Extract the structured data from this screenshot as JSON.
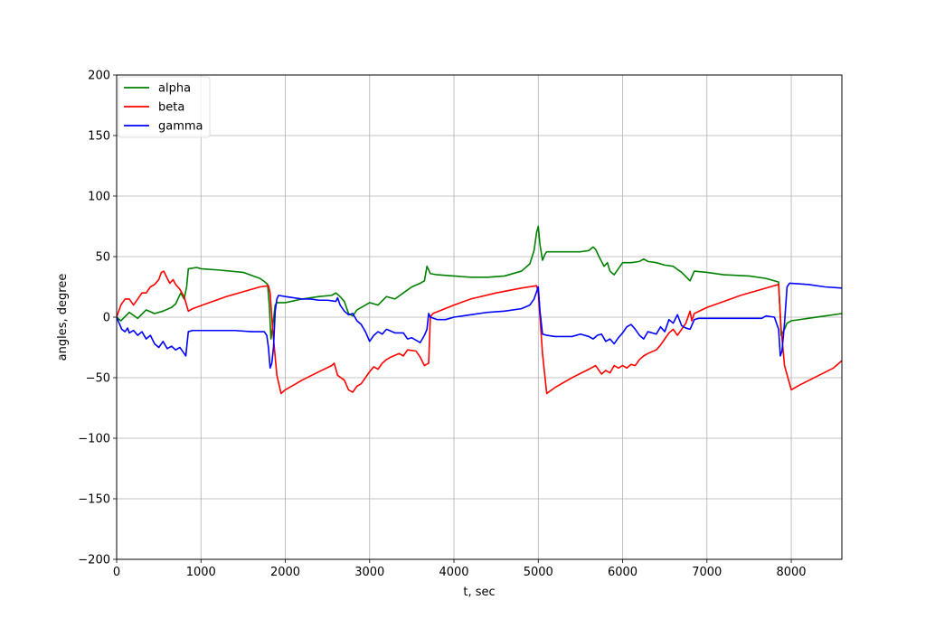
{
  "chart_data": {
    "type": "line",
    "xlabel": "t, sec",
    "ylabel": "angles, degree",
    "xlim": [
      0,
      8600
    ],
    "ylim": [
      -200,
      200
    ],
    "xticks": [
      0,
      1000,
      2000,
      3000,
      4000,
      5000,
      6000,
      7000,
      8000
    ],
    "yticks": [
      -200,
      -150,
      -100,
      -50,
      0,
      50,
      100,
      150,
      200
    ],
    "xtick_labels": [
      "0",
      "1000",
      "2000",
      "3000",
      "4000",
      "5000",
      "6000",
      "7000",
      "8000"
    ],
    "ytick_labels": [
      "−200",
      "−150",
      "−100",
      "−50",
      "0",
      "50",
      "100",
      "150",
      "200"
    ],
    "grid": true,
    "legend_position": "top-left",
    "series": [
      {
        "name": "alpha",
        "color": "#008000",
        "points": [
          [
            0,
            0
          ],
          [
            50,
            -3
          ],
          [
            150,
            4
          ],
          [
            250,
            -1
          ],
          [
            350,
            6
          ],
          [
            450,
            3
          ],
          [
            550,
            5
          ],
          [
            650,
            8
          ],
          [
            700,
            11
          ],
          [
            760,
            20
          ],
          [
            800,
            15
          ],
          [
            830,
            25
          ],
          [
            850,
            40
          ],
          [
            950,
            41
          ],
          [
            1000,
            40
          ],
          [
            1200,
            39
          ],
          [
            1500,
            37
          ],
          [
            1700,
            32
          ],
          [
            1760,
            29
          ],
          [
            1790,
            27
          ],
          [
            1810,
            10
          ],
          [
            1830,
            -18
          ],
          [
            1850,
            -8
          ],
          [
            1880,
            10
          ],
          [
            1900,
            12
          ],
          [
            2000,
            12
          ],
          [
            2200,
            15
          ],
          [
            2400,
            17
          ],
          [
            2550,
            18
          ],
          [
            2600,
            20
          ],
          [
            2650,
            17
          ],
          [
            2700,
            13
          ],
          [
            2750,
            3
          ],
          [
            2800,
            1
          ],
          [
            2850,
            6
          ],
          [
            2900,
            8
          ],
          [
            3000,
            12
          ],
          [
            3100,
            10
          ],
          [
            3200,
            17
          ],
          [
            3300,
            15
          ],
          [
            3400,
            20
          ],
          [
            3500,
            25
          ],
          [
            3600,
            28
          ],
          [
            3650,
            30
          ],
          [
            3680,
            42
          ],
          [
            3720,
            36
          ],
          [
            3800,
            35
          ],
          [
            4000,
            34
          ],
          [
            4200,
            33
          ],
          [
            4400,
            33
          ],
          [
            4600,
            34
          ],
          [
            4800,
            38
          ],
          [
            4900,
            44
          ],
          [
            4950,
            55
          ],
          [
            4980,
            70
          ],
          [
            5000,
            75
          ],
          [
            5020,
            60
          ],
          [
            5050,
            47
          ],
          [
            5080,
            52
          ],
          [
            5100,
            54
          ],
          [
            5300,
            54
          ],
          [
            5500,
            54
          ],
          [
            5600,
            55
          ],
          [
            5650,
            58
          ],
          [
            5680,
            56
          ],
          [
            5720,
            50
          ],
          [
            5780,
            42
          ],
          [
            5820,
            45
          ],
          [
            5850,
            38
          ],
          [
            5900,
            35
          ],
          [
            5950,
            40
          ],
          [
            6000,
            45
          ],
          [
            6100,
            45
          ],
          [
            6200,
            46
          ],
          [
            6250,
            48
          ],
          [
            6300,
            46
          ],
          [
            6400,
            45
          ],
          [
            6500,
            43
          ],
          [
            6600,
            42
          ],
          [
            6700,
            37
          ],
          [
            6800,
            30
          ],
          [
            6850,
            38
          ],
          [
            7000,
            37
          ],
          [
            7200,
            35
          ],
          [
            7500,
            34
          ],
          [
            7700,
            32
          ],
          [
            7850,
            29
          ],
          [
            7880,
            -15
          ],
          [
            7920,
            -10
          ],
          [
            7950,
            -5
          ],
          [
            8000,
            -3
          ],
          [
            8200,
            -1
          ],
          [
            8400,
            1
          ],
          [
            8600,
            3
          ]
        ]
      },
      {
        "name": "beta",
        "color": "#ff0000",
        "points": [
          [
            0,
            0
          ],
          [
            50,
            10
          ],
          [
            100,
            15
          ],
          [
            150,
            15
          ],
          [
            200,
            10
          ],
          [
            250,
            15
          ],
          [
            300,
            20
          ],
          [
            350,
            20
          ],
          [
            400,
            25
          ],
          [
            450,
            27
          ],
          [
            500,
            31
          ],
          [
            530,
            37
          ],
          [
            560,
            38
          ],
          [
            600,
            32
          ],
          [
            630,
            28
          ],
          [
            670,
            31
          ],
          [
            700,
            27
          ],
          [
            750,
            23
          ],
          [
            800,
            17
          ],
          [
            850,
            5
          ],
          [
            900,
            7
          ],
          [
            1100,
            12
          ],
          [
            1300,
            17
          ],
          [
            1500,
            21
          ],
          [
            1700,
            25
          ],
          [
            1800,
            26
          ],
          [
            1820,
            20
          ],
          [
            1850,
            -10
          ],
          [
            1900,
            -48
          ],
          [
            1950,
            -63
          ],
          [
            2000,
            -60
          ],
          [
            2200,
            -52
          ],
          [
            2400,
            -45
          ],
          [
            2550,
            -40
          ],
          [
            2580,
            -38
          ],
          [
            2620,
            -48
          ],
          [
            2700,
            -52
          ],
          [
            2750,
            -60
          ],
          [
            2800,
            -62
          ],
          [
            2850,
            -57
          ],
          [
            2900,
            -55
          ],
          [
            2950,
            -50
          ],
          [
            3000,
            -45
          ],
          [
            3050,
            -41
          ],
          [
            3100,
            -43
          ],
          [
            3150,
            -38
          ],
          [
            3200,
            -35
          ],
          [
            3250,
            -33
          ],
          [
            3350,
            -30
          ],
          [
            3400,
            -32
          ],
          [
            3450,
            -27
          ],
          [
            3550,
            -28
          ],
          [
            3600,
            -33
          ],
          [
            3650,
            -40
          ],
          [
            3700,
            -38
          ],
          [
            3720,
            0
          ],
          [
            3750,
            3
          ],
          [
            4000,
            10
          ],
          [
            4200,
            15
          ],
          [
            4500,
            20
          ],
          [
            4800,
            24
          ],
          [
            4980,
            26
          ],
          [
            5000,
            20
          ],
          [
            5050,
            -30
          ],
          [
            5100,
            -63
          ],
          [
            5200,
            -58
          ],
          [
            5400,
            -50
          ],
          [
            5600,
            -43
          ],
          [
            5680,
            -40
          ],
          [
            5700,
            -42
          ],
          [
            5750,
            -47
          ],
          [
            5800,
            -44
          ],
          [
            5850,
            -46
          ],
          [
            5900,
            -40
          ],
          [
            5950,
            -42
          ],
          [
            6000,
            -40
          ],
          [
            6050,
            -42
          ],
          [
            6100,
            -39
          ],
          [
            6150,
            -40
          ],
          [
            6200,
            -35
          ],
          [
            6250,
            -32
          ],
          [
            6300,
            -30
          ],
          [
            6400,
            -27
          ],
          [
            6450,
            -23
          ],
          [
            6500,
            -18
          ],
          [
            6550,
            -13
          ],
          [
            6600,
            -10
          ],
          [
            6650,
            -15
          ],
          [
            6700,
            -10
          ],
          [
            6750,
            -5
          ],
          [
            6800,
            5
          ],
          [
            6820,
            -3
          ],
          [
            6850,
            3
          ],
          [
            7000,
            8
          ],
          [
            7200,
            13
          ],
          [
            7400,
            18
          ],
          [
            7600,
            22
          ],
          [
            7800,
            26
          ],
          [
            7850,
            27
          ],
          [
            7880,
            -10
          ],
          [
            7920,
            -40
          ],
          [
            8000,
            -60
          ],
          [
            8100,
            -56
          ],
          [
            8300,
            -49
          ],
          [
            8500,
            -42
          ],
          [
            8600,
            -36
          ]
        ]
      },
      {
        "name": "gamma",
        "color": "#0000ff",
        "points": [
          [
            0,
            0
          ],
          [
            30,
            -5
          ],
          [
            60,
            -10
          ],
          [
            100,
            -12
          ],
          [
            130,
            -9
          ],
          [
            150,
            -13
          ],
          [
            200,
            -11
          ],
          [
            250,
            -15
          ],
          [
            300,
            -12
          ],
          [
            350,
            -18
          ],
          [
            400,
            -15
          ],
          [
            450,
            -22
          ],
          [
            500,
            -25
          ],
          [
            550,
            -20
          ],
          [
            600,
            -26
          ],
          [
            650,
            -24
          ],
          [
            700,
            -27
          ],
          [
            750,
            -25
          ],
          [
            800,
            -30
          ],
          [
            820,
            -32
          ],
          [
            850,
            -12
          ],
          [
            900,
            -11
          ],
          [
            1000,
            -11
          ],
          [
            1200,
            -11
          ],
          [
            1400,
            -11
          ],
          [
            1600,
            -12
          ],
          [
            1750,
            -12
          ],
          [
            1780,
            -15
          ],
          [
            1800,
            -25
          ],
          [
            1820,
            -42
          ],
          [
            1840,
            -38
          ],
          [
            1860,
            -25
          ],
          [
            1880,
            5
          ],
          [
            1900,
            15
          ],
          [
            1920,
            18
          ],
          [
            2000,
            17
          ],
          [
            2100,
            16
          ],
          [
            2200,
            15
          ],
          [
            2300,
            15
          ],
          [
            2400,
            14
          ],
          [
            2500,
            14
          ],
          [
            2600,
            13
          ],
          [
            2620,
            16
          ],
          [
            2650,
            10
          ],
          [
            2700,
            5
          ],
          [
            2750,
            2
          ],
          [
            2800,
            3
          ],
          [
            2850,
            -3
          ],
          [
            2900,
            -6
          ],
          [
            2950,
            -12
          ],
          [
            3000,
            -20
          ],
          [
            3050,
            -15
          ],
          [
            3100,
            -12
          ],
          [
            3150,
            -14
          ],
          [
            3200,
            -10
          ],
          [
            3300,
            -13
          ],
          [
            3400,
            -13
          ],
          [
            3450,
            -18
          ],
          [
            3500,
            -17
          ],
          [
            3600,
            -21
          ],
          [
            3650,
            -15
          ],
          [
            3680,
            -10
          ],
          [
            3700,
            3
          ],
          [
            3720,
            0
          ],
          [
            3800,
            -2
          ],
          [
            3900,
            -2
          ],
          [
            4000,
            0
          ],
          [
            4200,
            2
          ],
          [
            4400,
            4
          ],
          [
            4600,
            5
          ],
          [
            4800,
            7
          ],
          [
            4900,
            10
          ],
          [
            4950,
            15
          ],
          [
            5000,
            25
          ],
          [
            5020,
            5
          ],
          [
            5050,
            -14
          ],
          [
            5100,
            -15
          ],
          [
            5200,
            -16
          ],
          [
            5400,
            -16
          ],
          [
            5500,
            -14
          ],
          [
            5600,
            -16
          ],
          [
            5650,
            -18
          ],
          [
            5700,
            -15
          ],
          [
            5750,
            -14
          ],
          [
            5800,
            -20
          ],
          [
            5850,
            -18
          ],
          [
            5900,
            -22
          ],
          [
            5950,
            -17
          ],
          [
            6000,
            -13
          ],
          [
            6050,
            -8
          ],
          [
            6100,
            -6
          ],
          [
            6150,
            -10
          ],
          [
            6200,
            -15
          ],
          [
            6250,
            -18
          ],
          [
            6300,
            -12
          ],
          [
            6400,
            -14
          ],
          [
            6450,
            -8
          ],
          [
            6500,
            -12
          ],
          [
            6550,
            -2
          ],
          [
            6600,
            -5
          ],
          [
            6650,
            2
          ],
          [
            6700,
            -7
          ],
          [
            6750,
            -9
          ],
          [
            6800,
            -10
          ],
          [
            6850,
            -2
          ],
          [
            6900,
            -1
          ],
          [
            7000,
            -1
          ],
          [
            7200,
            -1
          ],
          [
            7500,
            -1
          ],
          [
            7650,
            -1
          ],
          [
            7700,
            1
          ],
          [
            7800,
            0
          ],
          [
            7850,
            -10
          ],
          [
            7870,
            -32
          ],
          [
            7890,
            -28
          ],
          [
            7920,
            -5
          ],
          [
            7950,
            25
          ],
          [
            7980,
            28
          ],
          [
            8200,
            27
          ],
          [
            8400,
            25
          ],
          [
            8600,
            24
          ]
        ]
      }
    ]
  }
}
